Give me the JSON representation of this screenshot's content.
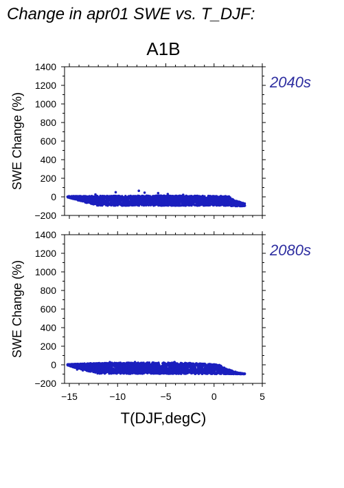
{
  "figure": {
    "title": "Change in apr01 SWE vs. T_DJF:",
    "subtitle": "A1B",
    "xlabel": "T(DJF,degC)",
    "point_color": "#1b1fbe",
    "label_color": "#2d2da0"
  },
  "chart_data": [
    {
      "type": "scatter",
      "panel": "2040s",
      "annotation": "2040s",
      "xlabel": "",
      "ylabel": "SWE Change (%)",
      "xlim": [
        -15.5,
        5
      ],
      "ylim": [
        -200,
        1400
      ],
      "xticks": [
        -15,
        -10,
        -5,
        0,
        5
      ],
      "yticks": [
        -200,
        0,
        200,
        400,
        600,
        800,
        1000,
        1200,
        1400
      ],
      "grid": false,
      "x_range_of_points": [
        -15.2,
        3.2
      ],
      "band_upper": [
        [
          -15.2,
          8
        ],
        [
          -13,
          10
        ],
        [
          -10,
          12
        ],
        [
          -6,
          14
        ],
        [
          -2,
          12
        ],
        [
          1.5,
          8
        ],
        [
          2.2,
          -40
        ],
        [
          3.2,
          -70
        ]
      ],
      "band_lower": [
        [
          -15.2,
          -5
        ],
        [
          -14,
          -40
        ],
        [
          -13,
          -70
        ],
        [
          -12,
          -95
        ],
        [
          1,
          -95
        ],
        [
          2,
          -100
        ],
        [
          3.2,
          -100
        ]
      ],
      "outliers": [
        [
          -10.2,
          50
        ],
        [
          -7.8,
          65
        ],
        [
          -7.2,
          45
        ],
        [
          -5.8,
          40
        ],
        [
          -4.8,
          30
        ],
        [
          -12.3,
          25
        ],
        [
          -3.2,
          22
        ],
        [
          2.4,
          -75
        ],
        [
          3.1,
          -85
        ]
      ]
    },
    {
      "type": "scatter",
      "panel": "2080s",
      "annotation": "2080s",
      "xlabel": "T(DJF,degC)",
      "ylabel": "SWE Change (%)",
      "xlim": [
        -15.5,
        5
      ],
      "ylim": [
        -200,
        1400
      ],
      "xticks": [
        -15,
        -10,
        -5,
        0,
        5
      ],
      "yticks": [
        -200,
        0,
        200,
        400,
        600,
        800,
        1000,
        1200,
        1400
      ],
      "grid": false,
      "x_range_of_points": [
        -15.2,
        3.2
      ],
      "band_upper": [
        [
          -15.2,
          5
        ],
        [
          -13,
          18
        ],
        [
          -10,
          22
        ],
        [
          -6,
          25
        ],
        [
          -3,
          22
        ],
        [
          -1,
          15
        ],
        [
          0.5,
          0
        ],
        [
          1.5,
          -50
        ],
        [
          2.5,
          -85
        ],
        [
          3.2,
          -95
        ]
      ],
      "band_lower": [
        [
          -15.2,
          -5
        ],
        [
          -14.5,
          -30
        ],
        [
          -13.5,
          -55
        ],
        [
          -12.5,
          -85
        ],
        [
          -12,
          -95
        ],
        [
          2,
          -100
        ],
        [
          3.2,
          -100
        ]
      ],
      "outliers": [
        [
          -14.2,
          -50
        ],
        [
          -13.6,
          -60
        ],
        [
          -10.8,
          28
        ],
        [
          -8.2,
          30
        ],
        [
          -4.1,
          30
        ],
        [
          2.8,
          -100
        ]
      ]
    }
  ]
}
